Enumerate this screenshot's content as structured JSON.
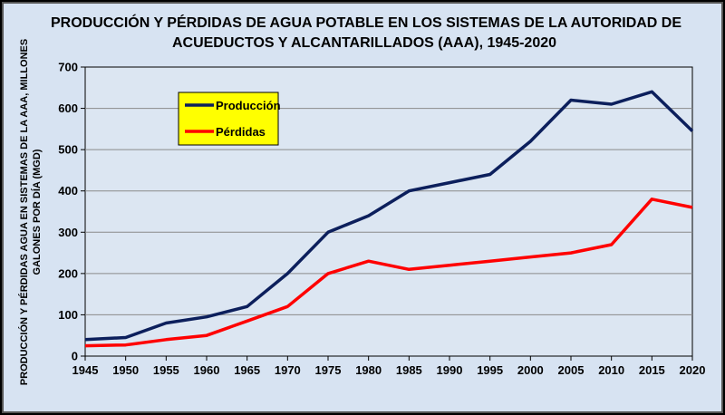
{
  "chart_data": {
    "type": "line",
    "title_lines": [
      "PRODUCCIÓN Y PÉRDIDAS DE AGUA POTABLE EN LOS SISTEMAS DE LA AUTORIDAD DE",
      "ACUEDUCTOS Y ALCANTARILLADOS (AAA), 1945-2020"
    ],
    "xlabel": "",
    "ylabel_lines": [
      "PRODUCCIÓN Y PÉRDIDAS AGUA EN SISTEMAS DE LA AAA, MILLONES",
      "GALONES POR DÍA (MGD)"
    ],
    "x": [
      1945,
      1950,
      1955,
      1960,
      1965,
      1970,
      1975,
      1980,
      1985,
      1990,
      1995,
      2000,
      2005,
      2010,
      2015,
      2020
    ],
    "xlim": [
      1945,
      2020
    ],
    "ylim": [
      0,
      700
    ],
    "yticks": [
      0,
      100,
      200,
      300,
      400,
      500,
      600,
      700
    ],
    "grid": true,
    "legend_placement": "top-left",
    "legend_background": "#ffff00",
    "series": [
      {
        "name": "Producción",
        "color": "#0c1f5c",
        "values": [
          40,
          45,
          80,
          95,
          120,
          200,
          300,
          340,
          400,
          420,
          440,
          520,
          620,
          610,
          640,
          545
        ]
      },
      {
        "name": "Pérdidas",
        "color": "#ff0000",
        "values": [
          25,
          27,
          40,
          50,
          85,
          120,
          200,
          230,
          210,
          220,
          230,
          240,
          250,
          270,
          380,
          360
        ]
      }
    ]
  }
}
